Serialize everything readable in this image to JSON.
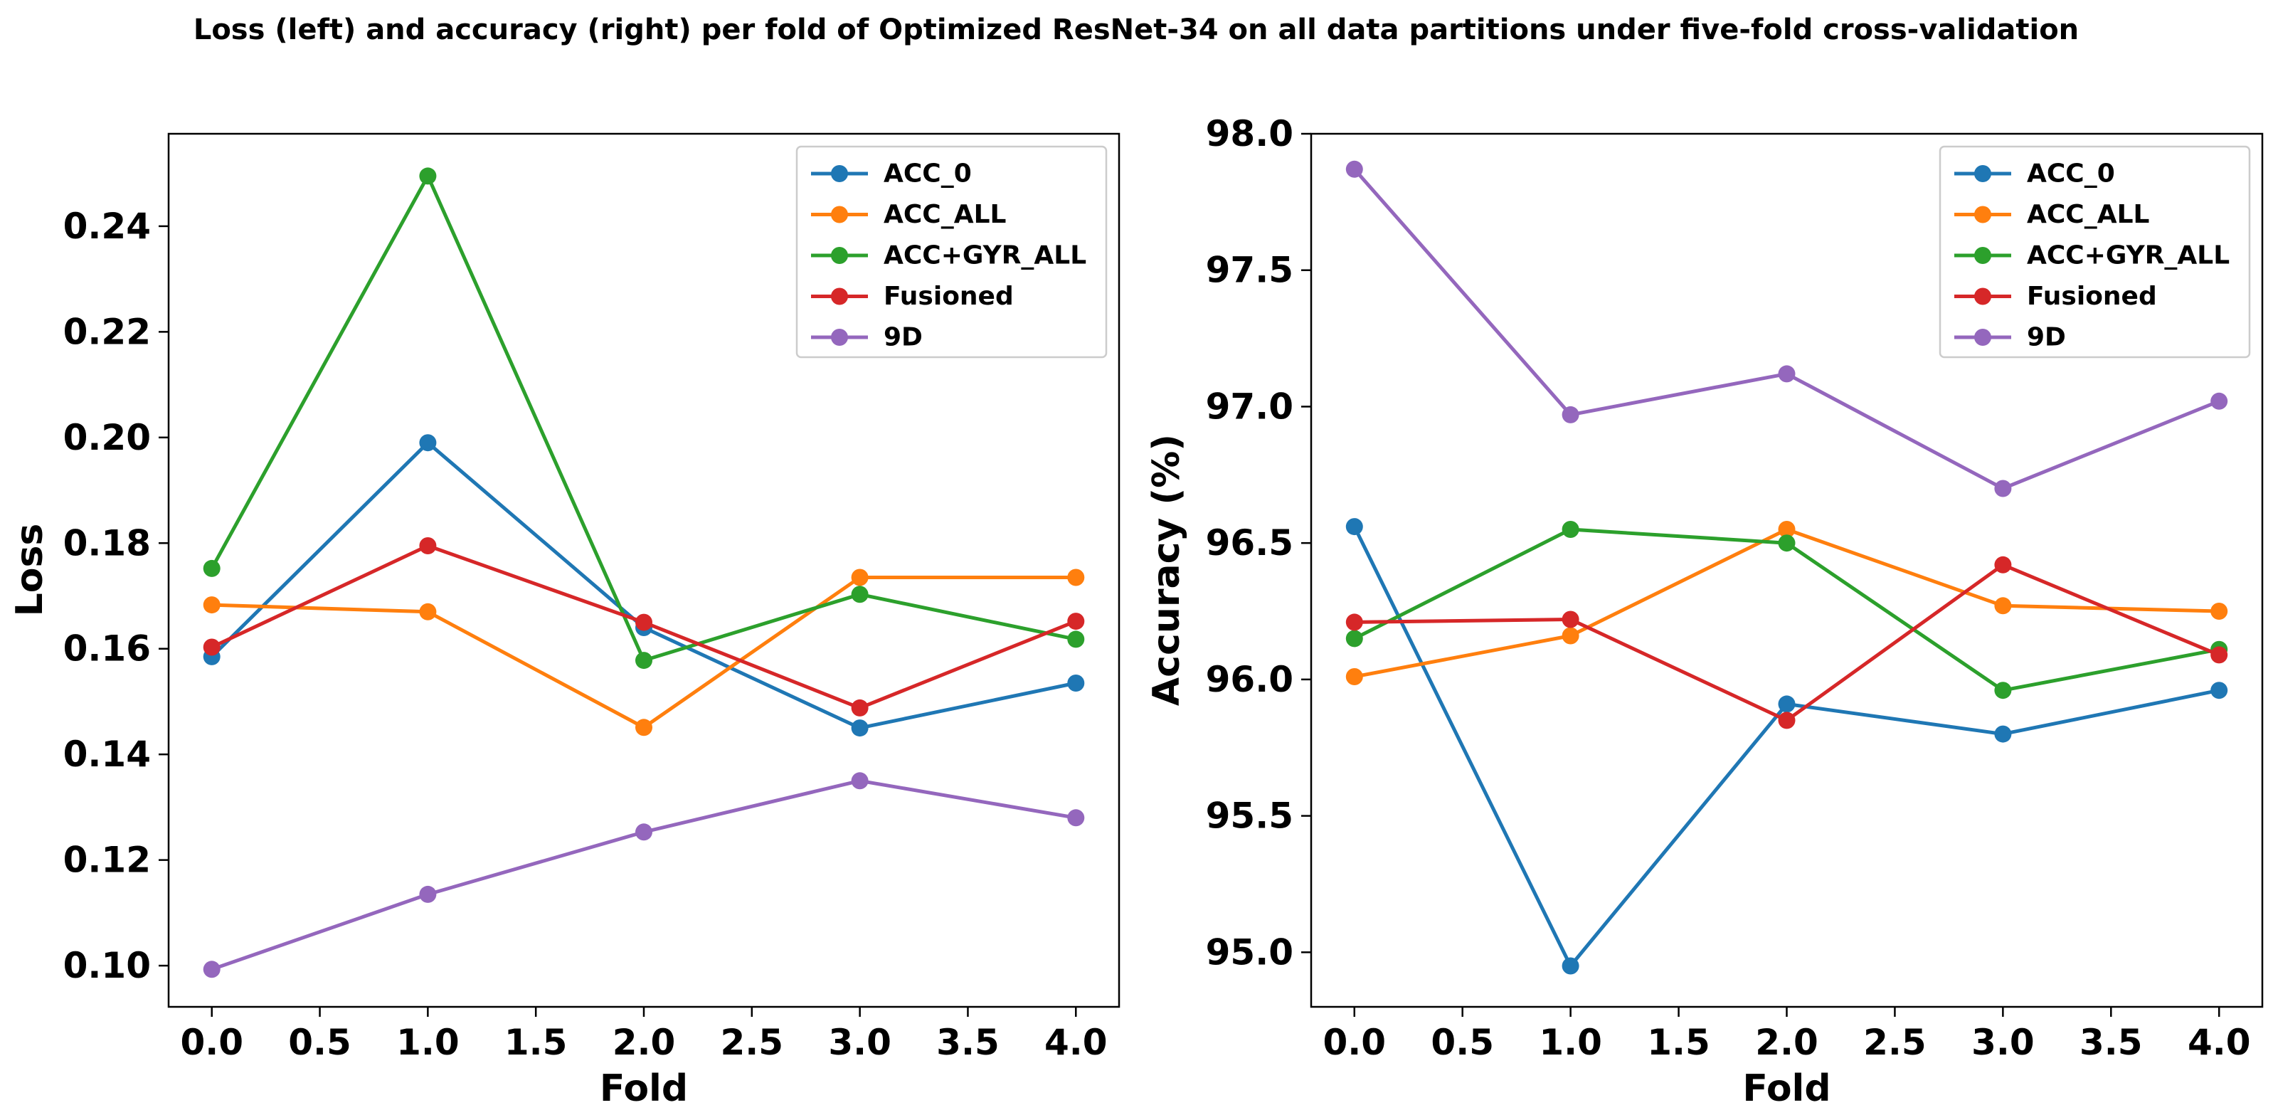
{
  "figure_title": "Loss (left) and accuracy (right) per fold of Optimized ResNet-34 on all data partitions under five-fold cross-validation",
  "chart_data": [
    {
      "type": "line",
      "title": "",
      "xlabel": "Fold",
      "ylabel": "Loss",
      "x": [
        0,
        1,
        2,
        3,
        4
      ],
      "xlim": [
        -0.2,
        4.2
      ],
      "ylim": [
        0.0922,
        0.2575
      ],
      "xticks": [
        0.0,
        0.5,
        1.0,
        1.5,
        2.0,
        2.5,
        3.0,
        3.5,
        4.0
      ],
      "xtick_labels": [
        "0.0",
        "0.5",
        "1.0",
        "1.5",
        "2.0",
        "2.5",
        "3.0",
        "3.5",
        "4.0"
      ],
      "yticks": [
        0.1,
        0.12,
        0.14,
        0.16,
        0.18,
        0.2,
        0.22,
        0.24
      ],
      "ytick_labels": [
        "0.10",
        "0.12",
        "0.14",
        "0.16",
        "0.18",
        "0.20",
        "0.22",
        "0.24"
      ],
      "grid": false,
      "legend_position": "top-right",
      "series": [
        {
          "name": "ACC_0",
          "color": "#1f77b4",
          "values": [
            0.1585,
            0.199,
            0.164,
            0.145,
            0.1535
          ]
        },
        {
          "name": "ACC_ALL",
          "color": "#ff7f0e",
          "values": [
            0.1683,
            0.167,
            0.1451,
            0.1735,
            0.1735
          ]
        },
        {
          "name": "ACC+GYR_ALL",
          "color": "#2ca02c",
          "values": [
            0.1752,
            0.2495,
            0.1578,
            0.1703,
            0.1618
          ]
        },
        {
          "name": "Fusioned",
          "color": "#d62728",
          "values": [
            0.1603,
            0.1795,
            0.165,
            0.1488,
            0.1652
          ]
        },
        {
          "name": "9D",
          "color": "#9467bd",
          "values": [
            0.0993,
            0.1135,
            0.1253,
            0.135,
            0.128
          ]
        }
      ]
    },
    {
      "type": "line",
      "title": "",
      "xlabel": "Fold",
      "ylabel": "Accuracy (%)",
      "x": [
        0,
        1,
        2,
        3,
        4
      ],
      "xlim": [
        -0.2,
        4.2
      ],
      "ylim": [
        94.8,
        98.0
      ],
      "xticks": [
        0.0,
        0.5,
        1.0,
        1.5,
        2.0,
        2.5,
        3.0,
        3.5,
        4.0
      ],
      "xtick_labels": [
        "0.0",
        "0.5",
        "1.0",
        "1.5",
        "2.0",
        "2.5",
        "3.0",
        "3.5",
        "4.0"
      ],
      "yticks": [
        95.0,
        95.5,
        96.0,
        96.5,
        97.0,
        97.5,
        98.0
      ],
      "ytick_labels": [
        "95.0",
        "95.5",
        "96.0",
        "96.5",
        "97.0",
        "97.5",
        "98.0"
      ],
      "grid": false,
      "legend_position": "top-right",
      "series": [
        {
          "name": "ACC_0",
          "color": "#1f77b4",
          "values": [
            96.56,
            94.95,
            95.91,
            95.8,
            95.96
          ]
        },
        {
          "name": "ACC_ALL",
          "color": "#ff7f0e",
          "values": [
            96.01,
            96.16,
            96.55,
            96.27,
            96.25
          ]
        },
        {
          "name": "ACC+GYR_ALL",
          "color": "#2ca02c",
          "values": [
            96.15,
            96.55,
            96.5,
            95.96,
            96.11
          ]
        },
        {
          "name": "Fusioned",
          "color": "#d62728",
          "values": [
            96.21,
            96.22,
            95.85,
            96.42,
            96.09
          ]
        },
        {
          "name": "9D",
          "color": "#9467bd",
          "values": [
            97.87,
            96.97,
            97.12,
            96.7,
            97.02
          ]
        }
      ]
    }
  ]
}
